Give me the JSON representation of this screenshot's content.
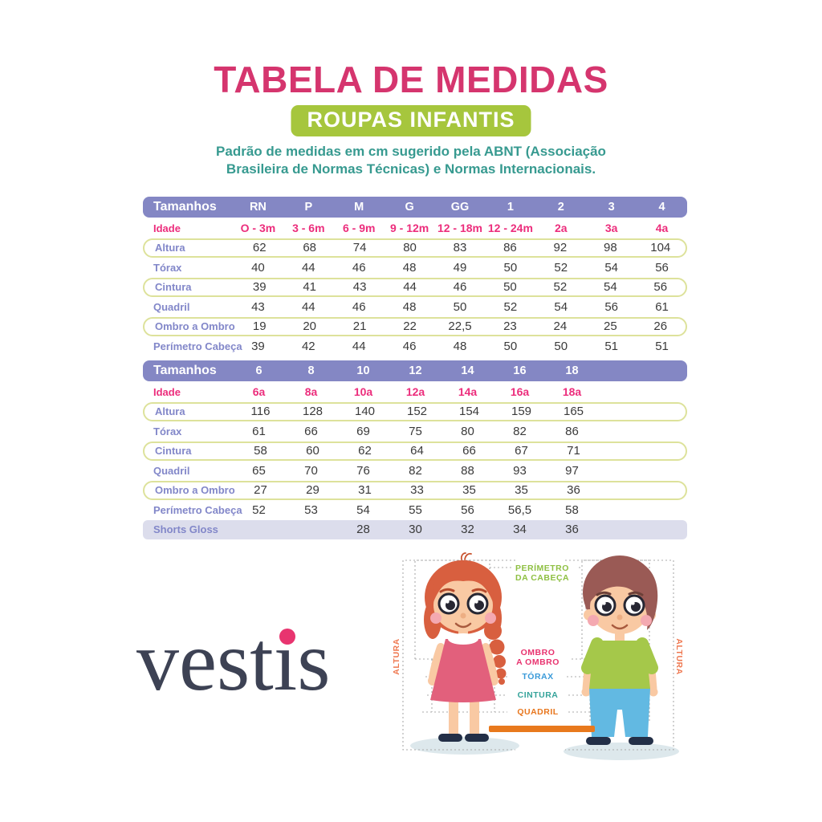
{
  "header": {
    "title": "TABELA DE MEDIDAS",
    "badge": "ROUPAS INFANTIS",
    "subtitle_line1": "Padrão de medidas em cm sugerido pela ABNT (Associação",
    "subtitle_line2": "Brasileira de Normas Técnicas) e Normas Internacionais.",
    "title_color": "#d5356e",
    "badge_bg": "#a6c63d",
    "subtitle_color": "#379a90"
  },
  "table_style": {
    "header_bg": "#8487c4",
    "idade_color": "#ec2d7c",
    "label_color": "#8287c9",
    "outline_color": "#dde29b",
    "highlight_bg": "#dcddec"
  },
  "table1": {
    "header_label": "Tamanhos",
    "sizes": [
      "RN",
      "P",
      "M",
      "G",
      "GG",
      "1",
      "2",
      "3",
      "4"
    ],
    "idade": {
      "label": "Idade",
      "values": [
        "O - 3m",
        "3 - 6m",
        "6 - 9m",
        "9 - 12m",
        "12 - 18m",
        "12 - 24m",
        "2a",
        "3a",
        "4a"
      ]
    },
    "rows": [
      {
        "label": "Altura",
        "style": "outlined",
        "values": [
          "62",
          "68",
          "74",
          "80",
          "83",
          "86",
          "92",
          "98",
          "104"
        ]
      },
      {
        "label": "Tórax",
        "style": "plain",
        "values": [
          "40",
          "44",
          "46",
          "48",
          "49",
          "50",
          "52",
          "54",
          "56"
        ]
      },
      {
        "label": "Cintura",
        "style": "outlined",
        "values": [
          "39",
          "41",
          "43",
          "44",
          "46",
          "50",
          "52",
          "54",
          "56"
        ]
      },
      {
        "label": "Quadril",
        "style": "plain",
        "values": [
          "43",
          "44",
          "46",
          "48",
          "50",
          "52",
          "54",
          "56",
          "61"
        ]
      },
      {
        "label": "Ombro a Ombro",
        "style": "outlined",
        "values": [
          "19",
          "20",
          "21",
          "22",
          "22,5",
          "23",
          "24",
          "25",
          "26"
        ]
      },
      {
        "label": "Perímetro Cabeça",
        "style": "plain",
        "values": [
          "39",
          "42",
          "44",
          "46",
          "48",
          "50",
          "50",
          "51",
          "51"
        ]
      }
    ]
  },
  "table2": {
    "header_label": "Tamanhos",
    "sizes": [
      "6",
      "8",
      "10",
      "12",
      "14",
      "16",
      "18"
    ],
    "idade": {
      "label": "Idade",
      "values": [
        "6a",
        "8a",
        "10a",
        "12a",
        "14a",
        "16a",
        "18a"
      ]
    },
    "rows": [
      {
        "label": "Altura",
        "style": "outlined",
        "values": [
          "116",
          "128",
          "140",
          "152",
          "154",
          "159",
          "165"
        ]
      },
      {
        "label": "Tórax",
        "style": "plain",
        "values": [
          "61",
          "66",
          "69",
          "75",
          "80",
          "82",
          "86"
        ]
      },
      {
        "label": "Cintura",
        "style": "outlined",
        "values": [
          "58",
          "60",
          "62",
          "64",
          "66",
          "67",
          "71"
        ]
      },
      {
        "label": "Quadril",
        "style": "plain",
        "values": [
          "65",
          "70",
          "76",
          "82",
          "88",
          "93",
          "97"
        ]
      },
      {
        "label": "Ombro a Ombro",
        "style": "outlined",
        "values": [
          "27",
          "29",
          "31",
          "33",
          "35",
          "35",
          "36"
        ]
      },
      {
        "label": "Perímetro Cabeça",
        "style": "plain",
        "values": [
          "52",
          "53",
          "54",
          "55",
          "56",
          "56,5",
          "58"
        ]
      },
      {
        "label": "Shorts Gloss",
        "style": "highlight",
        "values": [
          "",
          "",
          "28",
          "30",
          "32",
          "34",
          "36"
        ]
      }
    ]
  },
  "logo": {
    "brand": "vestis",
    "text": "vestıs",
    "color": "#3d4254",
    "dot_color": "#e8346f"
  },
  "figure": {
    "labels": {
      "perimetro_line1": "PERÍMETRO",
      "perimetro_line2": "DA CABEÇA",
      "ombro_line1": "OMBRO",
      "ombro_line2": "A OMBRO",
      "torax": "TÓRAX",
      "cintura": "CINTURA",
      "quadril": "QUADRIL",
      "altura_left": "ALTURA",
      "altura_right": "ALTURA"
    },
    "label_colors": {
      "perimetro": "#8fc043",
      "ombro": "#e8336f",
      "torax": "#3a9ad9",
      "cintura": "#35a39a",
      "quadril": "#e8761d",
      "altura": "#ef7850",
      "bar": "#e8791d"
    }
  }
}
